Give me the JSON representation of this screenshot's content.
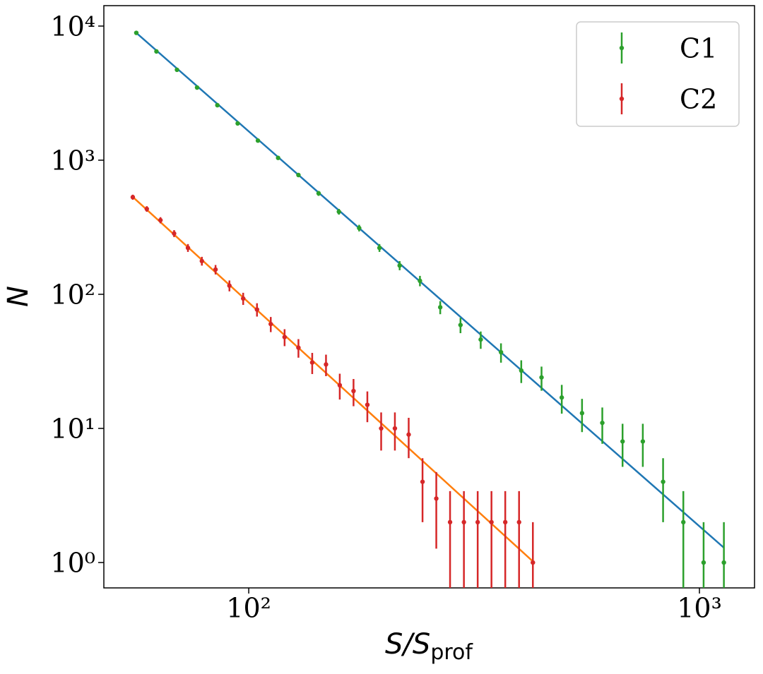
{
  "chart_data": {
    "type": "scatter",
    "log_x": true,
    "log_y": true,
    "xlabel": {
      "text": "S/S",
      "subscript": "prof"
    },
    "ylabel": "N",
    "xlim": [
      47.7,
      1325
    ],
    "ylim": [
      0.647,
      14200
    ],
    "xticks": [
      {
        "value": 100,
        "label": "10²"
      },
      {
        "value": 1000,
        "label": "10³"
      }
    ],
    "yticks": [
      {
        "value": 1,
        "label": "10⁰"
      },
      {
        "value": 10,
        "label": "10¹"
      },
      {
        "value": 100,
        "label": "10²"
      },
      {
        "value": 1000,
        "label": "10³"
      },
      {
        "value": 10000,
        "label": "10⁴"
      }
    ],
    "legend": "upper right",
    "series": [
      {
        "name": "C1",
        "color": "#2ca02c",
        "x": [
          56.3,
          62.4,
          69.3,
          76.8,
          85.2,
          94.5,
          104.8,
          116.2,
          128.9,
          142.9,
          158.5,
          175.8,
          195.0,
          216.2,
          239.8,
          266.0,
          295.0,
          327.1,
          362.8,
          402.4,
          446.3,
          494.9,
          548.9,
          608.8,
          675.2,
          748.8,
          830.5,
          921.0,
          1021.5,
          1133
        ],
        "values": [
          8900,
          6470,
          4720,
          3480,
          2570,
          1880,
          1400,
          1040,
          775,
          566,
          413,
          312,
          222,
          164,
          126,
          80,
          59,
          46,
          37,
          27,
          24,
          17,
          13,
          11,
          8,
          8,
          4,
          2,
          1,
          1
        ],
        "errors": [
          94.3,
          80.4,
          68.7,
          59.0,
          50.7,
          43.4,
          37.4,
          32.2,
          27.8,
          23.8,
          20.3,
          17.7,
          14.9,
          12.8,
          11.2,
          8.94,
          7.68,
          6.78,
          6.08,
          5.2,
          4.9,
          4.12,
          3.61,
          3.32,
          2.83,
          2.83,
          2.0,
          1.41,
          1.0,
          1.0
        ]
      },
      {
        "name": "C2",
        "color": "#d62728",
        "x": [
          55.3,
          59.4,
          63.7,
          68.3,
          73.3,
          78.7,
          84.4,
          90.6,
          97.2,
          104.3,
          111.9,
          120.1,
          128.9,
          138.3,
          148.4,
          159.2,
          170.8,
          183.3,
          196.7,
          211.0,
          226.4,
          243.0,
          260.7,
          279.7,
          300.2,
          322.1,
          345.6,
          370.8,
          397.9,
          427
        ],
        "values": [
          530,
          433,
          357,
          284,
          222,
          177,
          153,
          116,
          93,
          77,
          60,
          48,
          40,
          31,
          30,
          21,
          19,
          15,
          10,
          10,
          9,
          4,
          3,
          2,
          2,
          2,
          2,
          2,
          2,
          1
        ],
        "errors": [
          23.0,
          20.8,
          18.9,
          16.9,
          14.9,
          13.3,
          12.4,
          10.8,
          9.64,
          8.77,
          7.75,
          6.93,
          6.32,
          5.57,
          5.48,
          4.58,
          4.36,
          3.87,
          3.16,
          3.16,
          3.0,
          2.0,
          1.73,
          1.41,
          1.41,
          1.41,
          1.41,
          1.41,
          1.41,
          1.0
        ]
      }
    ],
    "fits": [
      {
        "color": "#1f77b4",
        "x": [
          56.3,
          1133
        ],
        "values": [
          8900,
          1.29
        ]
      },
      {
        "color": "#ff7f0e",
        "x": [
          55.3,
          427
        ],
        "values": [
          532,
          1.02
        ]
      }
    ]
  }
}
